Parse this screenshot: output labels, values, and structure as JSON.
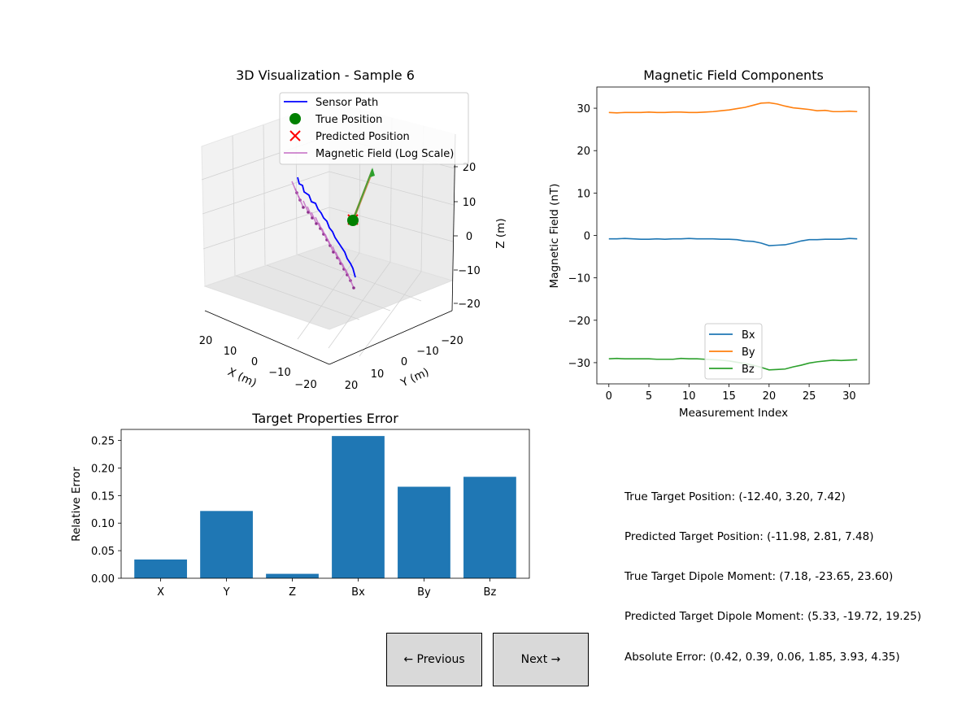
{
  "colors": {
    "bar": "#1f77b4",
    "bx": "#1f77b4",
    "by": "#ff7f0e",
    "bz": "#2ca02c",
    "sensor_path": "#0000ff",
    "true_position": "#008000",
    "predicted_position": "#ff0000",
    "magnetic_field": "#bf60bf",
    "dipole_arrow": "#2ca02c"
  },
  "panel3d": {
    "title": "3D Visualization - Sample 6",
    "xlabel": "X (m)",
    "ylabel": "Y (m)",
    "zlabel": "Z (m)",
    "x_ticks": [
      "20",
      "10",
      "0",
      "−10",
      "−20"
    ],
    "y_ticks": [
      "20",
      "10",
      "0",
      "−10",
      "−20"
    ],
    "z_ticks": [
      "20",
      "10",
      "0",
      "−10",
      "−20"
    ],
    "legend": [
      "Sensor Path",
      "True Position",
      "Predicted Position",
      "Magnetic Field (Log Scale)"
    ]
  },
  "chart_data": [
    {
      "type": "line",
      "title": "Magnetic Field Components",
      "xlabel": "Measurement Index",
      "ylabel": "Magnetic Field (nT)",
      "xlim": [
        -1.5,
        32.5
      ],
      "ylim": [
        -35,
        35
      ],
      "x_ticks": [
        0,
        5,
        10,
        15,
        20,
        25,
        30
      ],
      "y_ticks": [
        30,
        20,
        10,
        0,
        -10,
        -20,
        -30
      ],
      "y_tick_labels": [
        "30",
        "20",
        "10",
        "0",
        "−10",
        "−20",
        "−30"
      ],
      "legend_position": "lower center",
      "x": [
        0,
        1,
        2,
        3,
        4,
        5,
        6,
        7,
        8,
        9,
        10,
        11,
        12,
        13,
        14,
        15,
        16,
        17,
        18,
        19,
        20,
        21,
        22,
        23,
        24,
        25,
        26,
        27,
        28,
        29,
        30,
        31
      ],
      "series": [
        {
          "name": "Bx",
          "values": [
            -0.8,
            -0.8,
            -0.7,
            -0.8,
            -0.9,
            -0.9,
            -0.8,
            -0.9,
            -0.8,
            -0.8,
            -0.7,
            -0.8,
            -0.8,
            -0.8,
            -0.9,
            -0.9,
            -1.0,
            -1.3,
            -1.4,
            -1.8,
            -2.4,
            -2.3,
            -2.2,
            -1.8,
            -1.3,
            -1.0,
            -1.0,
            -0.9,
            -0.9,
            -0.9,
            -0.7,
            -0.8
          ]
        },
        {
          "name": "By",
          "values": [
            29.0,
            28.9,
            29.0,
            29.0,
            29.0,
            29.1,
            29.0,
            29.0,
            29.1,
            29.1,
            29.0,
            29.0,
            29.1,
            29.2,
            29.4,
            29.6,
            29.9,
            30.2,
            30.7,
            31.2,
            31.3,
            31.0,
            30.5,
            30.1,
            29.9,
            29.7,
            29.4,
            29.5,
            29.2,
            29.2,
            29.3,
            29.2
          ]
        },
        {
          "name": "Bz",
          "values": [
            -29.1,
            -29.0,
            -29.1,
            -29.1,
            -29.1,
            -29.1,
            -29.2,
            -29.2,
            -29.2,
            -29.0,
            -29.1,
            -29.1,
            -29.2,
            -29.3,
            -29.4,
            -29.6,
            -29.9,
            -30.2,
            -30.6,
            -31.1,
            -31.7,
            -31.6,
            -31.5,
            -31.0,
            -30.6,
            -30.1,
            -29.8,
            -29.6,
            -29.4,
            -29.5,
            -29.4,
            -29.3
          ]
        }
      ]
    },
    {
      "type": "bar",
      "title": "Target Properties Error",
      "ylabel": "Relative Error",
      "categories": [
        "X",
        "Y",
        "Z",
        "Bx",
        "By",
        "Bz"
      ],
      "values": [
        0.034,
        0.122,
        0.008,
        0.258,
        0.166,
        0.184
      ],
      "ylim": [
        0,
        0.27
      ],
      "y_ticks": [
        0.0,
        0.05,
        0.1,
        0.15,
        0.2,
        0.25
      ],
      "y_tick_labels": [
        "0.00",
        "0.05",
        "0.10",
        "0.15",
        "0.20",
        "0.25"
      ]
    }
  ],
  "info": {
    "line1": "True Target Position: (-12.40, 3.20, 7.42)",
    "line2": "Predicted Target Position: (-11.98, 2.81, 7.48)",
    "line3": "True Target Dipole Moment: (7.18, -23.65, 23.60)",
    "line4": "Predicted Target Dipole Moment: (5.33, -19.72, 19.25)",
    "line5": "Absolute Error: (0.42, 0.39, 0.06, 1.85, 3.93, 4.35)"
  },
  "buttons": {
    "previous": "← Previous",
    "next": "Next →"
  }
}
